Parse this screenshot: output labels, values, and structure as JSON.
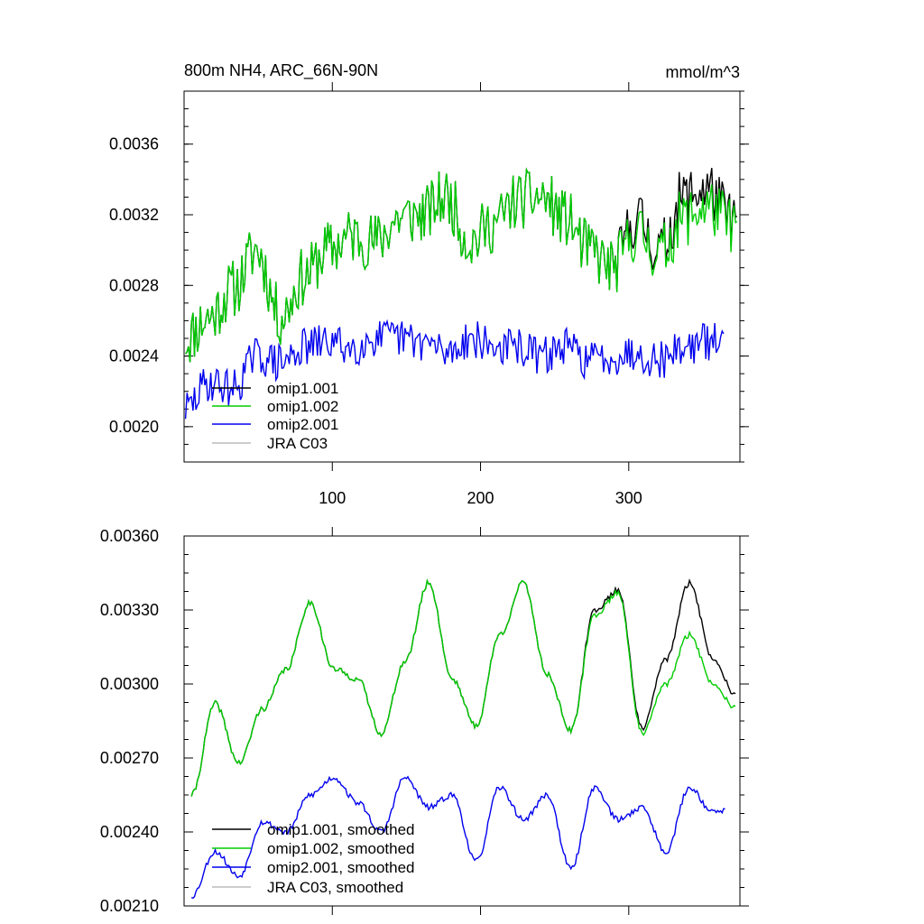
{
  "chart_data": [
    {
      "type": "line",
      "title": "800m NH4, ARC_66N-90N",
      "units": "mmol/m^3",
      "xlim": [
        0,
        375
      ],
      "ylim": [
        0.0018,
        0.0039
      ],
      "xticks": [
        100,
        200,
        300
      ],
      "xtick_labels": [
        "100",
        "200",
        "300"
      ],
      "yticks": [
        0.002,
        0.0024,
        0.0028,
        0.0032,
        0.0036
      ],
      "ytick_labels": [
        "0.0020",
        "0.0024",
        "0.0028",
        "0.0032",
        "0.0036"
      ],
      "series": [
        {
          "name": "omip1.001",
          "color": "#000000",
          "x0": 1,
          "period": 16,
          "values": [
            0.0025,
            0.00262,
            0.00278,
            0.003,
            0.00262,
            0.00285,
            0.003,
            0.00308,
            0.00305,
            0.00318,
            0.0032,
            0.0033,
            0.00305,
            0.00315,
            0.00328,
            0.0033,
            0.00318,
            0.003,
            0.0029,
            0.00318,
            0.003,
            0.0033,
            0.00335,
            0.00318
          ]
        },
        {
          "name": "omip1.002",
          "color": "#00cc00",
          "x0": 1,
          "period": 16,
          "values": [
            0.0025,
            0.00262,
            0.00278,
            0.003,
            0.00262,
            0.00285,
            0.003,
            0.00308,
            0.00305,
            0.00318,
            0.0032,
            0.0033,
            0.00305,
            0.00315,
            0.00328,
            0.0033,
            0.00318,
            0.003,
            0.0029,
            0.0031,
            0.00298,
            0.00318,
            0.00325,
            0.00315
          ]
        },
        {
          "name": "omip2.001",
          "color": "#0000ee",
          "x0": 1,
          "period": 16,
          "values": [
            0.0021,
            0.00225,
            0.00222,
            0.0024,
            0.00236,
            0.00245,
            0.00248,
            0.00245,
            0.0025,
            0.0025,
            0.00248,
            0.00242,
            0.0025,
            0.00245,
            0.00245,
            0.0024,
            0.00245,
            0.00238,
            0.0024,
            0.00242,
            0.00238,
            0.00245,
            0.00248,
            0.00248
          ]
        },
        {
          "name": "JRA C03",
          "color": "#bbbbbb",
          "x0": 1,
          "period": 16,
          "values": []
        }
      ],
      "legend": "bottom-left"
    },
    {
      "type": "line",
      "title": "",
      "xlim": [
        0,
        375
      ],
      "ylim": [
        0.0021,
        0.0036
      ],
      "yticks": [
        0.0021,
        0.0024,
        0.0027,
        0.003,
        0.0033,
        0.0036
      ],
      "ytick_labels": [
        "0.00210",
        "0.00240",
        "0.00270",
        "0.00300",
        "0.00330",
        "0.00360"
      ],
      "xticks": [
        100,
        200,
        300
      ],
      "xtick_labels": [],
      "series": [
        {
          "name": "omip1.001, smoothed",
          "color": "#000000",
          "x0": 5,
          "period": 16,
          "values": [
            0.00255,
            0.00292,
            0.00268,
            0.0029,
            0.00306,
            0.00333,
            0.00306,
            0.00302,
            0.0028,
            0.00309,
            0.00341,
            0.00302,
            0.00283,
            0.0032,
            0.00341,
            0.00304,
            0.00281,
            0.0033,
            0.00338,
            0.00282,
            0.0031,
            0.00341,
            0.0031,
            0.00295
          ]
        },
        {
          "name": "omip1.002, smoothed",
          "color": "#00cc00",
          "x0": 5,
          "period": 16,
          "values": [
            0.00255,
            0.00292,
            0.00268,
            0.0029,
            0.00306,
            0.00333,
            0.00306,
            0.00302,
            0.0028,
            0.00309,
            0.00341,
            0.00302,
            0.00283,
            0.0032,
            0.00341,
            0.00304,
            0.00281,
            0.00328,
            0.00337,
            0.0028,
            0.003,
            0.0032,
            0.003,
            0.0029
          ]
        },
        {
          "name": "omip2.001, smoothed",
          "color": "#0000ee",
          "x0": 5,
          "period": 16,
          "values": [
            0.00214,
            0.00232,
            0.00222,
            0.00244,
            0.0024,
            0.00255,
            0.00262,
            0.00252,
            0.0024,
            0.00262,
            0.0025,
            0.00255,
            0.00228,
            0.00258,
            0.00245,
            0.00255,
            0.00225,
            0.00258,
            0.00245,
            0.0025,
            0.00232,
            0.00258,
            0.00248,
            0.0025
          ]
        },
        {
          "name": "JRA C03, smoothed",
          "color": "#bbbbbb",
          "x0": 5,
          "period": 16,
          "values": []
        }
      ],
      "legend": "bottom-left"
    }
  ]
}
